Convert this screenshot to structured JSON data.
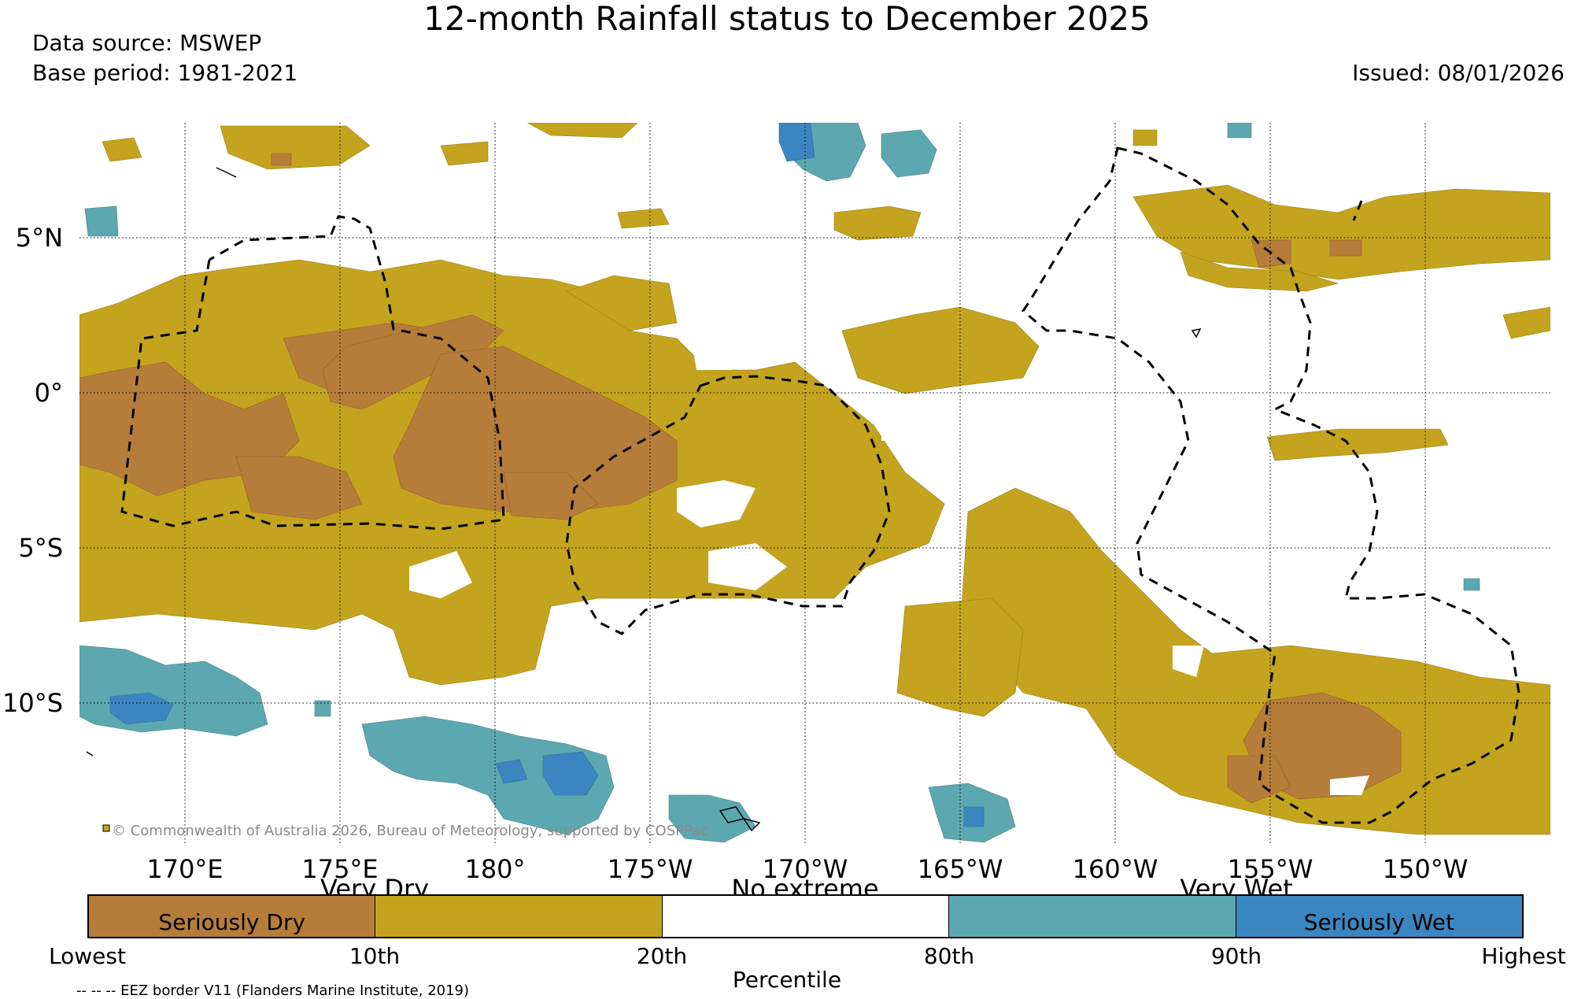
{
  "header": {
    "title": "12-month Rainfall status to December 2025",
    "data_source": "Data source: MSWEP",
    "base_period": "Base period: 1981-2021",
    "issued": "Issued: 08/01/2026"
  },
  "map": {
    "lat_labels": [
      "5°N",
      "0°",
      "5°S",
      "10°S"
    ],
    "lon_labels": [
      "170°E",
      "175°E",
      "180°",
      "175°W",
      "170°W",
      "165°W",
      "160°W",
      "155°W",
      "150°W"
    ],
    "copyright": "© Commonwealth of Australia 2026, Bureau of Meteorology, supported by COSPPac",
    "colors": {
      "seriously_dry": "#b67d3a",
      "very_dry": "#c4a41e",
      "no_extreme": "#ffffff",
      "very_wet": "#5da8b0",
      "seriously_wet": "#3b86c0"
    }
  },
  "legend": {
    "group_labels": [
      "Very Dry",
      "No extreme",
      "Very Wet"
    ],
    "segments": [
      {
        "label": "Seriously Dry",
        "color": "#b67d3a"
      },
      {
        "label": "",
        "color": "#c4a41e"
      },
      {
        "label": "",
        "color": "#ffffff"
      },
      {
        "label": "",
        "color": "#5da8b0"
      },
      {
        "label": "Seriously Wet",
        "color": "#3b86c0"
      }
    ],
    "ticks": [
      "Lowest",
      "10th",
      "20th",
      "80th",
      "90th",
      "Highest"
    ],
    "axis_label": "Percentile",
    "eez_note": "-- -- -- EEZ border V11 (Flanders Marine Institute, 2019)"
  }
}
